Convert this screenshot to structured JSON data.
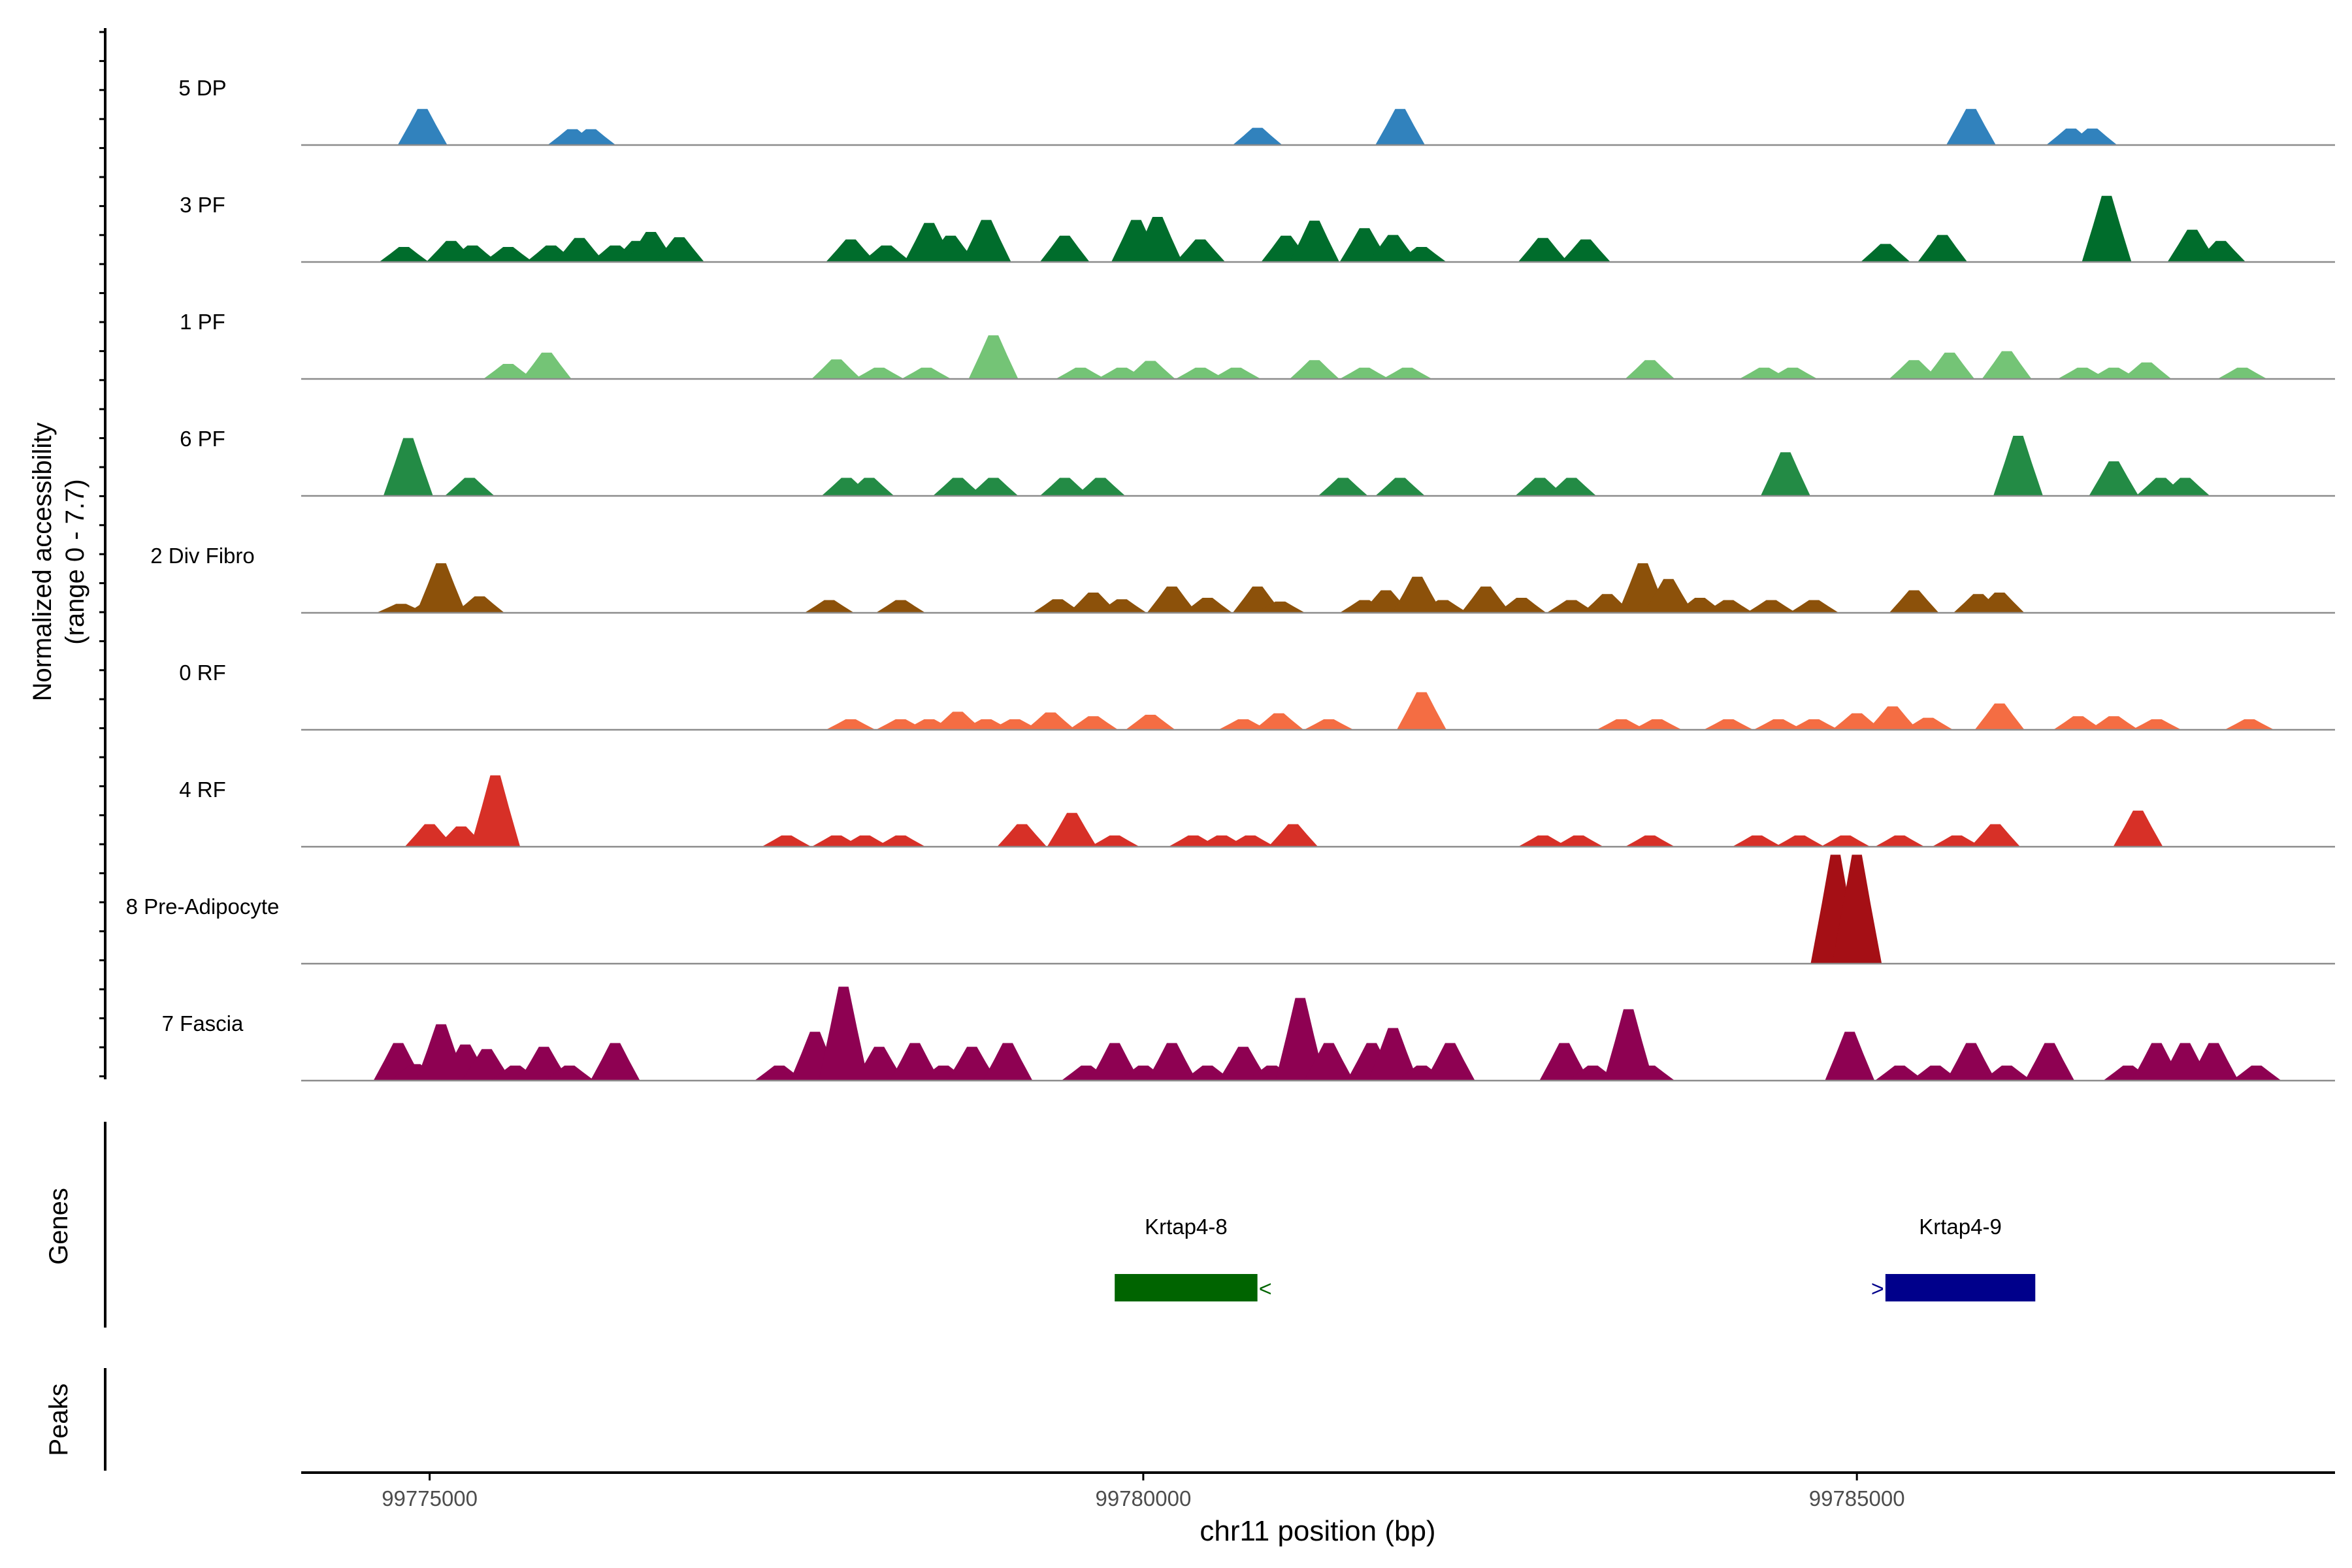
{
  "chart_data": {
    "type": "area",
    "subtype": "coverage-track",
    "xlabel": "chr11 position (bp)",
    "ylabel_line1": "Normalized accessibility",
    "ylabel_line2": "(range 0 - 7.7)",
    "xlim": [
      99774100,
      99788350
    ],
    "ylim": [
      0,
      7.7
    ],
    "x_ticks": [
      99775000,
      99780000,
      99785000
    ],
    "x_tick_labels": [
      "99775000",
      "99780000",
      "99785000"
    ],
    "genes_label": "Genes",
    "peaks_label": "Peaks",
    "tracks": [
      {
        "name": "5 DP",
        "color": "#3182bd",
        "peaks": [
          [
            99774950,
            4.8
          ],
          [
            99776000,
            2.1
          ],
          [
            99776130,
            2.1
          ],
          [
            99780800,
            2.3
          ],
          [
            99781800,
            4.8
          ],
          [
            99785800,
            4.8
          ],
          [
            99786500,
            2.2
          ],
          [
            99786650,
            2.2
          ]
        ]
      },
      {
        "name": "3 PF",
        "color": "#006d2c",
        "peaks": [
          [
            99774820,
            2.0
          ],
          [
            99775150,
            2.8
          ],
          [
            99775300,
            2.2
          ],
          [
            99775550,
            2.0
          ],
          [
            99775850,
            2.2
          ],
          [
            99776050,
            3.2
          ],
          [
            99776300,
            2.2
          ],
          [
            99776450,
            2.8
          ],
          [
            99776550,
            4.0
          ],
          [
            99776750,
            3.3
          ],
          [
            99777950,
            3.0
          ],
          [
            99778200,
            2.2
          ],
          [
            99778500,
            5.2
          ],
          [
            99778650,
            3.5
          ],
          [
            99778900,
            5.6
          ],
          [
            99779450,
            3.5
          ],
          [
            99779950,
            5.6
          ],
          [
            99780100,
            6.0
          ],
          [
            99780400,
            3.0
          ],
          [
            99781000,
            3.5
          ],
          [
            99781200,
            5.5
          ],
          [
            99781550,
            4.5
          ],
          [
            99781750,
            3.6
          ],
          [
            99781950,
            2.0
          ],
          [
            99782800,
            3.2
          ],
          [
            99783100,
            3.0
          ],
          [
            99785200,
            2.4
          ],
          [
            99785600,
            3.6
          ],
          [
            99786750,
            8.8
          ],
          [
            99787350,
            4.3
          ],
          [
            99787550,
            2.8
          ]
        ]
      },
      {
        "name": "1 PF",
        "color": "#74c476",
        "peaks": [
          [
            99775550,
            2.0
          ],
          [
            99775820,
            3.5
          ],
          [
            99777850,
            2.6
          ],
          [
            99778150,
            1.5
          ],
          [
            99778480,
            1.5
          ],
          [
            99778950,
            5.8
          ],
          [
            99779560,
            1.5
          ],
          [
            99779850,
            1.5
          ],
          [
            99780050,
            2.4
          ],
          [
            99780400,
            1.5
          ],
          [
            99780650,
            1.5
          ],
          [
            99781200,
            2.5
          ],
          [
            99781550,
            1.5
          ],
          [
            99781850,
            1.5
          ],
          [
            99783550,
            2.5
          ],
          [
            99784350,
            1.5
          ],
          [
            99784550,
            1.5
          ],
          [
            99785400,
            2.5
          ],
          [
            99785650,
            3.5
          ],
          [
            99786050,
            3.7
          ],
          [
            99786580,
            1.5
          ],
          [
            99786800,
            1.5
          ],
          [
            99787030,
            2.2
          ],
          [
            99787700,
            1.5
          ]
        ]
      },
      {
        "name": "6 PF",
        "color": "#238b45",
        "peaks": [
          [
            99774850,
            7.7
          ],
          [
            99775280,
            2.4
          ],
          [
            99777920,
            2.4
          ],
          [
            99778080,
            2.4
          ],
          [
            99778700,
            2.4
          ],
          [
            99778950,
            2.4
          ],
          [
            99779450,
            2.4
          ],
          [
            99779700,
            2.4
          ],
          [
            99781400,
            2.4
          ],
          [
            99781800,
            2.4
          ],
          [
            99782780,
            2.4
          ],
          [
            99783000,
            2.4
          ],
          [
            99784500,
            5.8
          ],
          [
            99786130,
            8.0
          ],
          [
            99786800,
            4.6
          ],
          [
            99787130,
            2.4
          ],
          [
            99787300,
            2.4
          ]
        ]
      },
      {
        "name": "2 Div Fibro",
        "color": "#8c510a",
        "peaks": [
          [
            99774800,
            1.2
          ],
          [
            99775020,
            1.8
          ],
          [
            99775080,
            6.6
          ],
          [
            99775350,
            2.2
          ],
          [
            99777800,
            1.7
          ],
          [
            99778300,
            1.7
          ],
          [
            99779400,
            1.8
          ],
          [
            99779650,
            2.7
          ],
          [
            99779850,
            1.8
          ],
          [
            99780200,
            3.5
          ],
          [
            99780450,
            2.0
          ],
          [
            99780800,
            3.5
          ],
          [
            99780960,
            1.5
          ],
          [
            99781550,
            1.7
          ],
          [
            99781700,
            3.0
          ],
          [
            99781920,
            4.8
          ],
          [
            99782100,
            1.7
          ],
          [
            99782400,
            3.5
          ],
          [
            99782650,
            2.0
          ],
          [
            99783000,
            1.7
          ],
          [
            99783250,
            2.5
          ],
          [
            99783500,
            6.6
          ],
          [
            99783680,
            4.5
          ],
          [
            99783900,
            2.0
          ],
          [
            99784100,
            1.7
          ],
          [
            99784400,
            1.7
          ],
          [
            99784700,
            1.7
          ],
          [
            99785400,
            3.0
          ],
          [
            99785850,
            2.5
          ],
          [
            99786000,
            2.7
          ]
        ]
      },
      {
        "name": "0 RF",
        "color": "#f46d43",
        "peaks": [
          [
            99777950,
            1.4
          ],
          [
            99778300,
            1.4
          ],
          [
            99778500,
            1.4
          ],
          [
            99778700,
            2.4
          ],
          [
            99778900,
            1.4
          ],
          [
            99779100,
            1.4
          ],
          [
            99779350,
            2.3
          ],
          [
            99779650,
            1.8
          ],
          [
            99780050,
            2.0
          ],
          [
            99780700,
            1.4
          ],
          [
            99780950,
            2.2
          ],
          [
            99781300,
            1.4
          ],
          [
            99781950,
            5.0
          ],
          [
            99783350,
            1.4
          ],
          [
            99783600,
            1.4
          ],
          [
            99784100,
            1.4
          ],
          [
            99784450,
            1.4
          ],
          [
            99784700,
            1.4
          ],
          [
            99785000,
            2.2
          ],
          [
            99785250,
            3.1
          ],
          [
            99785500,
            1.6
          ],
          [
            99786000,
            3.5
          ],
          [
            99786550,
            1.8
          ],
          [
            99786800,
            1.8
          ],
          [
            99787100,
            1.4
          ],
          [
            99787750,
            1.4
          ]
        ]
      },
      {
        "name": "4 RF",
        "color": "#d73027",
        "peaks": [
          [
            99775000,
            3.0
          ],
          [
            99775220,
            2.7
          ],
          [
            99775460,
            9.5
          ],
          [
            99777500,
            1.5
          ],
          [
            99777850,
            1.5
          ],
          [
            99778050,
            1.5
          ],
          [
            99778300,
            1.5
          ],
          [
            99779150,
            3.0
          ],
          [
            99779500,
            4.5
          ],
          [
            99779800,
            1.5
          ],
          [
            99780350,
            1.5
          ],
          [
            99780550,
            1.5
          ],
          [
            99780750,
            1.5
          ],
          [
            99781050,
            3.0
          ],
          [
            99782800,
            1.5
          ],
          [
            99783050,
            1.5
          ],
          [
            99783550,
            1.5
          ],
          [
            99784300,
            1.5
          ],
          [
            99784600,
            1.5
          ],
          [
            99784920,
            1.5
          ],
          [
            99785300,
            1.5
          ],
          [
            99785700,
            1.5
          ],
          [
            99785970,
            3.0
          ],
          [
            99786970,
            4.8
          ]
        ]
      },
      {
        "name": "8 Pre-Adipocyte",
        "color": "#a50f15",
        "peaks": [
          [
            99784850,
            14.5
          ],
          [
            99785000,
            14.5
          ]
        ]
      },
      {
        "name": "7 Fascia",
        "color": "#8e0152",
        "peaks": [
          [
            99774780,
            5.0
          ],
          [
            99774900,
            2.2
          ],
          [
            99775080,
            7.5
          ],
          [
            99775250,
            4.8
          ],
          [
            99775400,
            4.2
          ],
          [
            99775600,
            2.0
          ],
          [
            99775800,
            4.5
          ],
          [
            99775980,
            2.0
          ],
          [
            99776300,
            5.0
          ],
          [
            99777450,
            2.0
          ],
          [
            99777700,
            6.5
          ],
          [
            99777900,
            12.5
          ],
          [
            99778150,
            4.5
          ],
          [
            99778400,
            5.0
          ],
          [
            99778600,
            2.0
          ],
          [
            99778800,
            4.5
          ],
          [
            99779050,
            5.0
          ],
          [
            99779600,
            2.0
          ],
          [
            99779800,
            5.0
          ],
          [
            99780000,
            2.0
          ],
          [
            99780200,
            5.0
          ],
          [
            99780450,
            2.0
          ],
          [
            99780700,
            4.5
          ],
          [
            99780900,
            2.0
          ],
          [
            99781100,
            11.0
          ],
          [
            99781300,
            5.0
          ],
          [
            99781600,
            5.0
          ],
          [
            99781750,
            7.0
          ],
          [
            99781950,
            2.0
          ],
          [
            99782150,
            5.0
          ],
          [
            99782950,
            5.0
          ],
          [
            99783150,
            2.0
          ],
          [
            99783400,
            9.5
          ],
          [
            99783550,
            2.0
          ],
          [
            99784950,
            6.5
          ],
          [
            99785300,
            2.0
          ],
          [
            99785550,
            2.0
          ],
          [
            99785800,
            5.0
          ],
          [
            99786050,
            2.0
          ],
          [
            99786350,
            5.0
          ],
          [
            99786900,
            2.0
          ],
          [
            99787100,
            5.0
          ],
          [
            99787300,
            5.0
          ],
          [
            99787500,
            5.0
          ],
          [
            99787800,
            2.0
          ]
        ]
      }
    ],
    "genes": [
      {
        "name": "Krtap4-8",
        "start": 99779800,
        "end": 99780800,
        "strand": "-",
        "color": "#006400"
      },
      {
        "name": "Krtap4-9",
        "start": 99785200,
        "end": 99786250,
        "strand": "+",
        "color": "#00008b"
      }
    ]
  }
}
